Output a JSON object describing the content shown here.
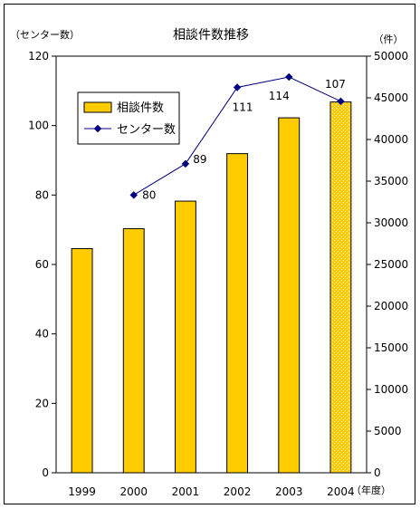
{
  "chart_data": {
    "type": "bar",
    "title": "相談件数推移",
    "left_unit": "（センター数）",
    "right_unit": "（件）",
    "x_unit": "（年度）",
    "categories": [
      "1999",
      "2000",
      "2001",
      "2002",
      "2003",
      "2004"
    ],
    "left_axis": {
      "min": 0,
      "max": 120,
      "ticks": [
        "0",
        "20",
        "40",
        "60",
        "80",
        "100",
        "120"
      ]
    },
    "right_axis": {
      "min": 0,
      "max": 50000,
      "ticks": [
        "0",
        "5000",
        "10000",
        "15000",
        "20000",
        "25000",
        "30000",
        "35000",
        "40000",
        "45000",
        "50000"
      ]
    },
    "series": [
      {
        "name": "相談件数",
        "kind": "bar",
        "axis": "right",
        "color": "#FFCC00",
        "values": [
          26900,
          29300,
          32600,
          38300,
          42600,
          44500
        ],
        "pattern_last": true
      },
      {
        "name": "センター数",
        "kind": "line",
        "axis": "left",
        "color": "#000080",
        "values": [
          null,
          80,
          89,
          111,
          114,
          107
        ],
        "labels": [
          "",
          "80",
          "89",
          "111",
          "114",
          "107"
        ]
      }
    ],
    "legend": {
      "position": "top-left"
    },
    "grid": false
  }
}
